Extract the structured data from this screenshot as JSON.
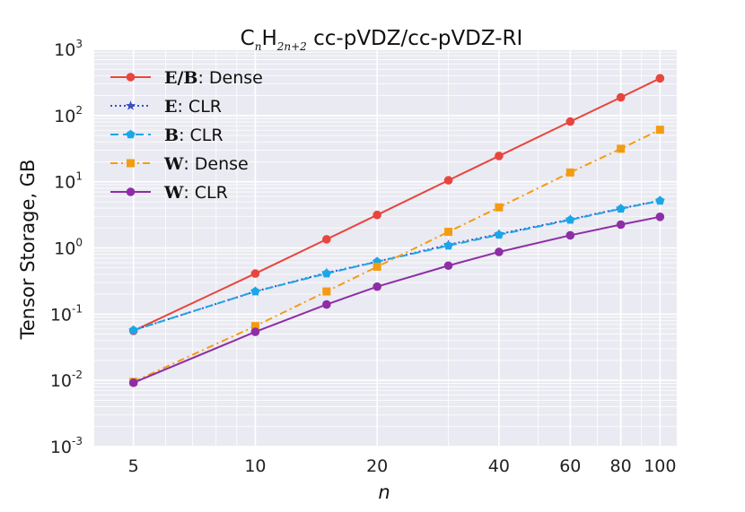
{
  "chart_data": {
    "type": "line",
    "title": {
      "base": "C",
      "sub1": "n",
      "mid": "H",
      "sub2": "2n+2",
      "rest": " cc-pVDZ/cc-pVDZ-RI"
    },
    "xlabel": "n",
    "ylabel": "Tensor Storage, GB",
    "xscale": "log",
    "yscale": "log",
    "xlim": [
      4.0,
      110
    ],
    "ylim": [
      0.001,
      1000
    ],
    "xticks": [
      5,
      10,
      20,
      40,
      60,
      80,
      100
    ],
    "xtick_labels": [
      "5",
      "10",
      "20",
      "40",
      "60",
      "80",
      "100"
    ],
    "yticks": [
      0.001,
      0.01,
      0.1,
      1,
      10,
      100,
      1000
    ],
    "ytick_labels": [
      {
        "base": "10",
        "exp": "-3"
      },
      {
        "base": "10",
        "exp": "-2"
      },
      {
        "base": "10",
        "exp": "-1"
      },
      {
        "base": "10",
        "exp": "0"
      },
      {
        "base": "10",
        "exp": "1"
      },
      {
        "base": "10",
        "exp": "2"
      },
      {
        "base": "10",
        "exp": "3"
      }
    ],
    "grid": true,
    "legend_position": "top-left",
    "x": [
      5,
      10,
      15,
      20,
      30,
      40,
      60,
      80,
      100
    ],
    "series": [
      {
        "name": "E/B: Dense",
        "symbol": "E/B",
        "text": ": Dense",
        "color": "#e8453c",
        "linestyle": "solid",
        "marker": "circle",
        "values": [
          0.056,
          0.41,
          1.35,
          3.15,
          10.5,
          24.5,
          81,
          188,
          365
        ]
      },
      {
        "name": "E: CLR",
        "symbol": "E",
        "text": ": CLR",
        "color": "#3a4fc4",
        "linestyle": "dotted",
        "marker": "star",
        "values": [
          0.057,
          0.22,
          0.42,
          0.62,
          1.12,
          1.62,
          2.7,
          3.95,
          5.2
        ]
      },
      {
        "name": "B: CLR",
        "symbol": "B",
        "text": ": CLR",
        "color": "#1aa7e8",
        "linestyle": "dashed",
        "marker": "pentagon",
        "values": [
          0.057,
          0.22,
          0.41,
          0.62,
          1.08,
          1.58,
          2.65,
          3.9,
          5.15
        ]
      },
      {
        "name": "W: Dense",
        "symbol": "W",
        "text": ": Dense",
        "color": "#f39c12",
        "linestyle": "dashdot",
        "marker": "square",
        "values": [
          0.0095,
          0.066,
          0.22,
          0.52,
          1.75,
          4.1,
          13.8,
          31.5,
          61
        ]
      },
      {
        "name": "W: CLR",
        "symbol": "W",
        "text": ": CLR",
        "color": "#8e2ea6",
        "linestyle": "solid",
        "marker": "circle",
        "values": [
          0.0092,
          0.054,
          0.14,
          0.26,
          0.54,
          0.87,
          1.55,
          2.25,
          2.95
        ]
      }
    ]
  }
}
